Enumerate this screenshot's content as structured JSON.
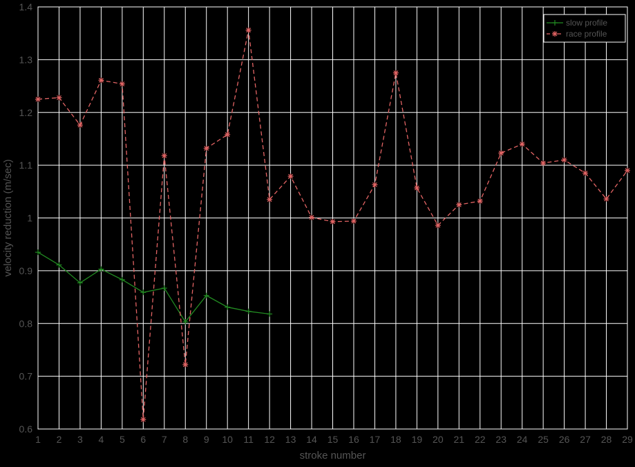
{
  "chart_data": {
    "type": "line",
    "title": "",
    "xlabel": "stroke number",
    "ylabel": "velocity reduction (m/sec)",
    "xlim": [
      1,
      29
    ],
    "ylim": [
      0.6,
      1.4
    ],
    "x_ticks": [
      1,
      2,
      3,
      4,
      5,
      6,
      7,
      8,
      9,
      10,
      11,
      12,
      13,
      14,
      15,
      16,
      17,
      18,
      19,
      20,
      21,
      22,
      23,
      24,
      25,
      26,
      27,
      28,
      29
    ],
    "y_ticks": [
      0.6,
      0.7,
      0.8,
      0.9,
      1.0,
      1.1,
      1.2,
      1.3,
      1.4
    ],
    "y_tick_labels": [
      "0.6",
      "0.7",
      "0.8",
      "0.9",
      "1",
      "1.1",
      "1.2",
      "1.3",
      "1.4"
    ],
    "grid": true,
    "legend_position": "top-right",
    "background_color": "#000000",
    "grid_color": "#ffffff",
    "text_color": "#555555",
    "series": [
      {
        "name": "slow profile",
        "color": "#228B22",
        "line_style": "solid",
        "marker": "plus",
        "x": [
          1,
          2,
          3,
          4,
          5,
          6,
          7,
          8,
          9,
          10,
          11,
          12
        ],
        "y": [
          0.935,
          0.911,
          0.877,
          0.903,
          0.883,
          0.859,
          0.867,
          0.803,
          0.853,
          0.831,
          0.823,
          0.818
        ]
      },
      {
        "name": "race profile",
        "color": "#E36464",
        "line_style": "dashed",
        "marker": "asterisk",
        "x": [
          1,
          2,
          3,
          4,
          5,
          6,
          7,
          8,
          9,
          10,
          11,
          12,
          13,
          14,
          15,
          16,
          17,
          18,
          19,
          20,
          21,
          22,
          23,
          24,
          25,
          26,
          27,
          28,
          29
        ],
        "y": [
          1.225,
          1.228,
          1.176,
          1.261,
          1.254,
          0.618,
          1.118,
          0.722,
          1.132,
          1.158,
          1.356,
          1.035,
          1.079,
          1.001,
          0.993,
          0.994,
          1.063,
          1.275,
          1.057,
          0.986,
          1.025,
          1.032,
          1.123,
          1.14,
          1.104,
          1.11,
          1.085,
          1.036,
          1.09
        ]
      }
    ]
  }
}
